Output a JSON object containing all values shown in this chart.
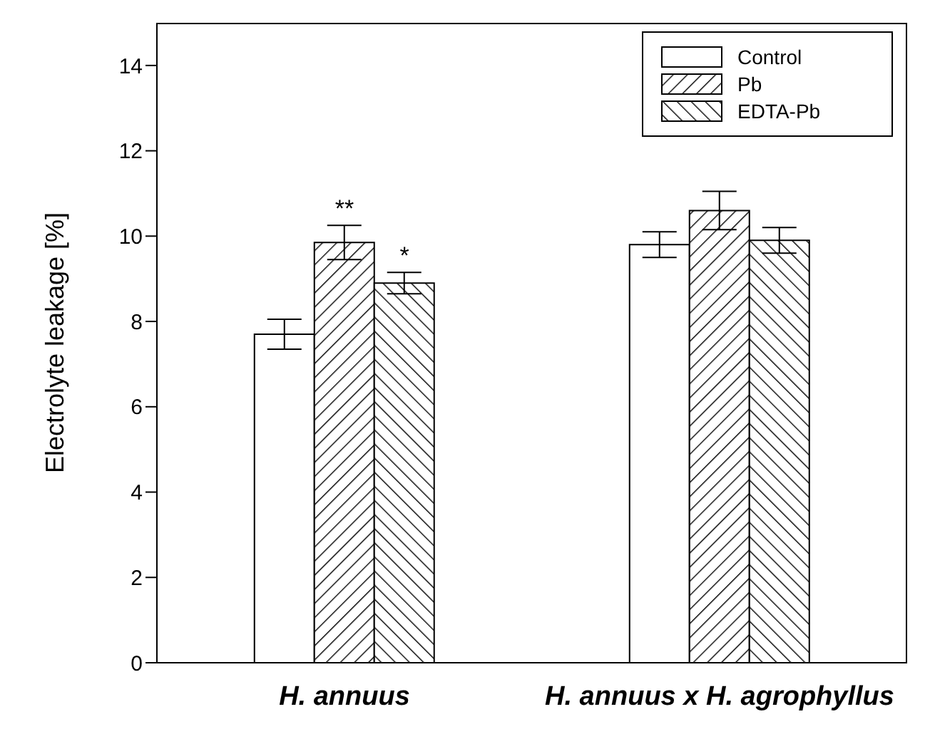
{
  "chart_data": {
    "type": "bar",
    "ylabel": "Electrolyte leakage [%]",
    "categories": [
      "H. annuus",
      "H. annuus x H. agrophyllus"
    ],
    "series": [
      {
        "name": "Control",
        "color": "#ffffff",
        "values": [
          7.7,
          9.8
        ],
        "errors": [
          0.35,
          0.3
        ]
      },
      {
        "name": "Pb",
        "color": "#000000",
        "values": [
          9.85,
          10.6
        ],
        "errors": [
          0.4,
          0.45
        ]
      },
      {
        "name": "EDTA-Pb",
        "color": "#000000",
        "values": [
          8.9,
          9.9
        ],
        "errors": [
          0.25,
          0.3
        ]
      }
    ],
    "ylim": [
      0,
      15
    ],
    "yticks": [
      0,
      2,
      4,
      6,
      8,
      10,
      12,
      14
    ],
    "annotations": [
      {
        "text": "**",
        "x": "H. annuus",
        "y": 9.85
      },
      "*"
    ],
    "legend": "top right",
    "grid": false
  }
}
